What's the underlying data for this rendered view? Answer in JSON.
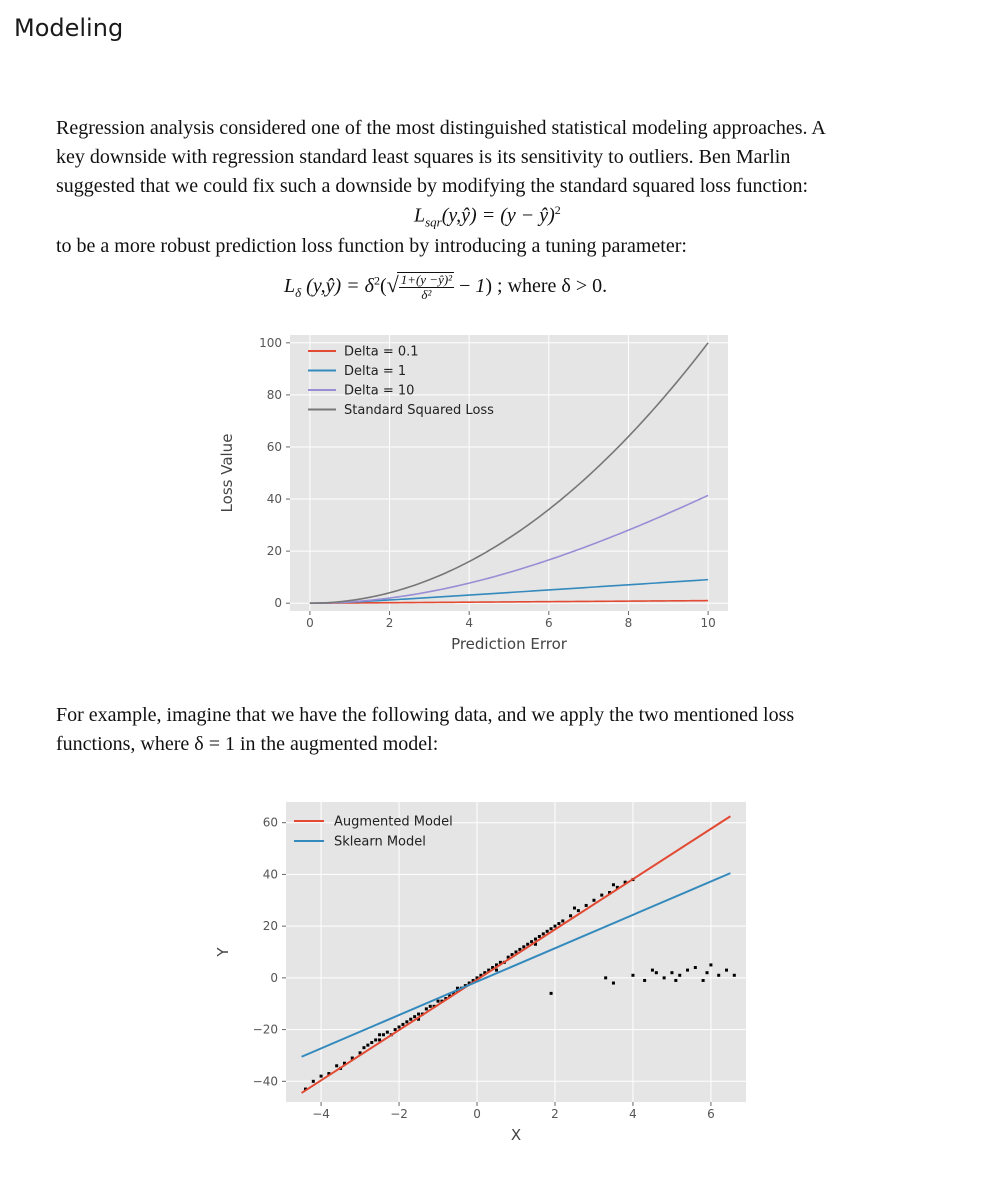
{
  "heading": "Modeling",
  "paragraph1": {
    "lines": [
      "Regression analysis considered one of the most distinguished statistical modeling approaches. A",
      "key downside with regression standard least squares is its sensitivity to outliers. Ben Marlin",
      "suggested that we could fix such a downside by modifying the standard squared loss function:"
    ]
  },
  "formula1": {
    "lhs": "L",
    "sub": "sqr",
    "args": "(y,ŷ) = (y − ŷ)",
    "power": "2"
  },
  "paragraph2": "to be a more robust prediction loss function by introducing a tuning parameter:",
  "formula2": {
    "lhs": "L",
    "sub": "δ",
    "args": "(y,ŷ)  =  δ",
    "power": "2",
    "open": "(",
    "num": "1+(y −ŷ)²",
    "den": "δ²",
    "tail1": " − ",
    "one": "1",
    "tail2": ") ; where δ > 0."
  },
  "paragraph3": {
    "lines": [
      "For example, imagine that we have the following data, and we apply the two mentioned loss",
      "functions, where δ = 1 in the augmented model:"
    ]
  },
  "colors": {
    "red": "#e24a33",
    "blue": "#348abd",
    "purple": "#988ed5",
    "gray": "#777777",
    "panel": "#e5e5e5"
  },
  "chart_data": [
    {
      "type": "line",
      "xlabel": "Prediction Error",
      "ylabel": "Loss Value",
      "xlim": [
        -0.5,
        10.5
      ],
      "ylim": [
        -3,
        103
      ],
      "xticks": [
        0,
        2,
        4,
        6,
        8,
        10
      ],
      "yticks": [
        0,
        20,
        40,
        60,
        80,
        100
      ],
      "grid": true,
      "legend_position": "top-left",
      "series": [
        {
          "name": "Delta = 0.1",
          "color": "#e24a33",
          "delta": 0.1,
          "x": [
            0,
            1,
            2,
            3,
            4,
            5,
            6,
            7,
            8,
            9,
            10
          ],
          "y": [
            0,
            0.09,
            0.19,
            0.29,
            0.39,
            0.49,
            0.59,
            0.69,
            0.79,
            0.89,
            0.99
          ]
        },
        {
          "name": "Delta = 1",
          "color": "#348abd",
          "delta": 1,
          "x": [
            0,
            1,
            2,
            3,
            4,
            5,
            6,
            7,
            8,
            9,
            10
          ],
          "y": [
            0,
            0.41,
            1.24,
            2.16,
            3.12,
            4.1,
            5.08,
            6.07,
            7.06,
            8.06,
            9.05
          ]
        },
        {
          "name": "Delta = 10",
          "color": "#988ed5",
          "delta": 10,
          "x": [
            0,
            1,
            2,
            3,
            4,
            5,
            6,
            7,
            8,
            9,
            10
          ],
          "y": [
            0,
            0.5,
            1.98,
            4.4,
            7.7,
            11.8,
            16.62,
            22.07,
            28.06,
            34.54,
            41.42
          ]
        },
        {
          "name": "Standard Squared Loss",
          "color": "#777777",
          "x": [
            0,
            1,
            2,
            3,
            4,
            5,
            6,
            7,
            8,
            9,
            10
          ],
          "y": [
            0,
            1,
            4,
            9,
            16,
            25,
            36,
            49,
            64,
            81,
            100
          ]
        }
      ]
    },
    {
      "type": "scatter",
      "xlabel": "X",
      "ylabel": "Y",
      "xlim": [
        -4.9,
        6.9
      ],
      "ylim": [
        -48,
        68
      ],
      "xticks": [
        -4,
        -2,
        0,
        2,
        4,
        6
      ],
      "yticks": [
        -40,
        -20,
        0,
        20,
        40,
        60
      ],
      "ytick_labels": [
        "−40",
        "−20",
        "0",
        "20",
        "40",
        "60"
      ],
      "xtick_labels": [
        "−4",
        "−2",
        "0",
        "2",
        "4",
        "6"
      ],
      "grid": true,
      "legend_position": "top-left",
      "lines": [
        {
          "name": "Augmented Model",
          "color": "#e24a33",
          "x": [
            -4.5,
            6.5
          ],
          "y": [
            -44.5,
            62.5
          ]
        },
        {
          "name": "Sklearn Model",
          "color": "#348abd",
          "x": [
            -4.5,
            6.5
          ],
          "y": [
            -30.5,
            40.5
          ]
        }
      ],
      "points": [
        [
          -4.4,
          -43
        ],
        [
          -4.2,
          -40
        ],
        [
          -4.0,
          -38
        ],
        [
          -3.8,
          -37
        ],
        [
          -3.6,
          -34
        ],
        [
          -3.4,
          -33
        ],
        [
          -3.2,
          -31
        ],
        [
          -3.0,
          -29
        ],
        [
          -2.9,
          -27
        ],
        [
          -2.8,
          -26
        ],
        [
          -2.7,
          -25
        ],
        [
          -2.6,
          -24
        ],
        [
          -2.5,
          -24
        ],
        [
          -2.4,
          -22
        ],
        [
          -2.3,
          -21
        ],
        [
          -2.2,
          -22
        ],
        [
          -2.1,
          -20
        ],
        [
          -2.0,
          -19
        ],
        [
          -1.9,
          -18
        ],
        [
          -1.8,
          -17
        ],
        [
          -1.7,
          -16
        ],
        [
          -1.6,
          -15
        ],
        [
          -1.5,
          -14
        ],
        [
          -1.4,
          -14
        ],
        [
          -1.3,
          -12
        ],
        [
          -1.2,
          -11
        ],
        [
          -1.1,
          -11
        ],
        [
          -1.0,
          -9
        ],
        [
          -0.9,
          -9
        ],
        [
          -0.8,
          -8
        ],
        [
          -0.7,
          -7
        ],
        [
          -0.6,
          -6
        ],
        [
          -0.5,
          -5
        ],
        [
          -0.4,
          -4
        ],
        [
          -0.3,
          -3
        ],
        [
          -0.2,
          -2
        ],
        [
          -0.1,
          -1
        ],
        [
          0.0,
          0
        ],
        [
          0.1,
          1
        ],
        [
          0.2,
          2
        ],
        [
          0.3,
          3
        ],
        [
          0.4,
          4
        ],
        [
          0.5,
          5
        ],
        [
          0.6,
          6
        ],
        [
          0.7,
          6
        ],
        [
          0.8,
          8
        ],
        [
          0.9,
          9
        ],
        [
          1.0,
          10
        ],
        [
          1.1,
          11
        ],
        [
          1.2,
          12
        ],
        [
          1.3,
          13
        ],
        [
          1.4,
          14
        ],
        [
          1.5,
          15
        ],
        [
          1.6,
          16
        ],
        [
          1.7,
          17
        ],
        [
          1.8,
          18
        ],
        [
          1.9,
          19
        ],
        [
          2.0,
          20
        ],
        [
          2.1,
          21
        ],
        [
          2.2,
          22
        ],
        [
          2.4,
          24
        ],
        [
          2.6,
          26
        ],
        [
          2.8,
          28
        ],
        [
          3.0,
          30
        ],
        [
          3.2,
          32
        ],
        [
          3.4,
          33
        ],
        [
          3.6,
          35
        ],
        [
          3.8,
          37
        ],
        [
          4.0,
          38
        ],
        [
          -2.5,
          -22
        ],
        [
          -1.5,
          -16
        ],
        [
          -0.5,
          -4
        ],
        [
          0.5,
          3
        ],
        [
          1.5,
          13
        ],
        [
          2.5,
          27
        ],
        [
          3.5,
          36
        ],
        [
          -3.5,
          -35
        ],
        [
          1.9,
          -6
        ],
        [
          3.3,
          0
        ],
        [
          3.5,
          -2
        ],
        [
          4.0,
          1
        ],
        [
          4.3,
          -1
        ],
        [
          4.6,
          2
        ],
        [
          4.8,
          0
        ],
        [
          5.0,
          2
        ],
        [
          5.2,
          1
        ],
        [
          5.4,
          3
        ],
        [
          5.6,
          4
        ],
        [
          5.8,
          -1
        ],
        [
          6.0,
          5
        ],
        [
          6.2,
          1
        ],
        [
          6.4,
          3
        ],
        [
          6.6,
          1
        ],
        [
          5.1,
          -1
        ],
        [
          4.5,
          3
        ],
        [
          5.9,
          2
        ]
      ]
    }
  ]
}
